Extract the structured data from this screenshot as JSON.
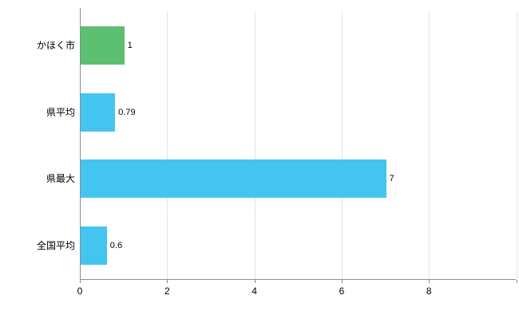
{
  "chart_data": {
    "type": "bar",
    "orientation": "horizontal",
    "title": "",
    "xlabel": "",
    "ylabel": "",
    "categories": [
      "かほく市",
      "県平均",
      "県最大",
      "全国平均"
    ],
    "values": [
      1,
      0.79,
      7,
      0.6
    ],
    "value_labels": [
      "1",
      "0.79",
      "7",
      "0.6"
    ],
    "bar_colors": [
      "#5cbf72",
      "#44c5ef",
      "#44c5ef",
      "#44c5ef"
    ],
    "xlim": [
      0,
      8
    ],
    "xtick_labels": [
      "0",
      "2",
      "4",
      "6",
      "8"
    ],
    "xtick_values": [
      0,
      2,
      4,
      6,
      8
    ],
    "grid_values": [
      2,
      4,
      6,
      8,
      10
    ],
    "grid": true,
    "legend": "none"
  },
  "colors": {
    "highlight_green": "#5cbf72",
    "series_blue": "#44c5ef",
    "grid": "#e4e4e4",
    "axis": "#8c8c8c",
    "text": "#000000",
    "background": "#ffffff"
  }
}
